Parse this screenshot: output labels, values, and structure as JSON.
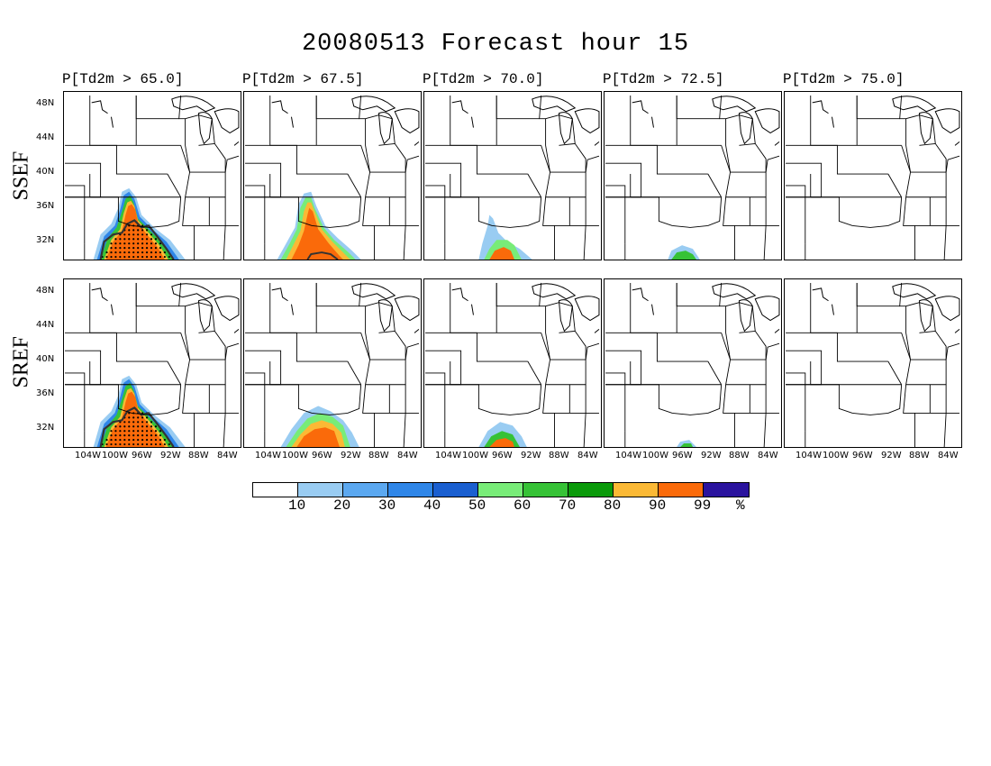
{
  "title": "20080513 Forecast hour 15",
  "columns": [
    {
      "label": "P[Td2m > 65.0]"
    },
    {
      "label": "P[Td2m > 67.5]"
    },
    {
      "label": "P[Td2m > 70.0]"
    },
    {
      "label": "P[Td2m > 72.5]"
    },
    {
      "label": "P[Td2m > 75.0]"
    }
  ],
  "rows": [
    {
      "label": "SSEF"
    },
    {
      "label": "SREF"
    }
  ],
  "lat_labels": [
    "48N",
    "44N",
    "40N",
    "36N",
    "32N"
  ],
  "lon_labels": [
    "104W",
    "100W",
    "96W",
    "92W",
    "88W",
    "84W"
  ],
  "colorbar": {
    "colors": [
      "#ffffff",
      "#99ccf2",
      "#5ba8f0",
      "#2f86e8",
      "#1a5fd0",
      "#78ec78",
      "#36c236",
      "#0a9a0a",
      "#fbb935",
      "#fa6a0a",
      "#2a139e"
    ],
    "tick_labels": [
      "10",
      "20",
      "30",
      "40",
      "50",
      "60",
      "70",
      "80",
      "90",
      "99",
      "%"
    ]
  },
  "map_data": {
    "projection": "regional map of central United States",
    "field": "probability of 2 m dewpoint exceeding threshold (%)",
    "panels": [
      {
        "row": "SSEF",
        "threshold": 65.0,
        "shading": "high probability (90-99%) over Texas/Oklahoma, stippled region in south"
      },
      {
        "row": "SSEF",
        "threshold": 67.5,
        "shading": "high probability over central Texas"
      },
      {
        "row": "SSEF",
        "threshold": 70.0,
        "shading": "moderate probability near southern edge"
      },
      {
        "row": "SSEF",
        "threshold": 72.5,
        "shading": "small low-probability area at southern edge"
      },
      {
        "row": "SSEF",
        "threshold": 75.0,
        "shading": "none"
      },
      {
        "row": "SREF",
        "threshold": 65.0,
        "shading": "high probability over Texas/Oklahoma, stippled region in south"
      },
      {
        "row": "SREF",
        "threshold": 67.5,
        "shading": "high probability over central Texas"
      },
      {
        "row": "SREF",
        "threshold": 70.0,
        "shading": "moderate probability near southern edge"
      },
      {
        "row": "SREF",
        "threshold": 72.5,
        "shading": "small low-probability area at southern edge"
      },
      {
        "row": "SREF",
        "threshold": 75.0,
        "shading": "none"
      }
    ]
  }
}
